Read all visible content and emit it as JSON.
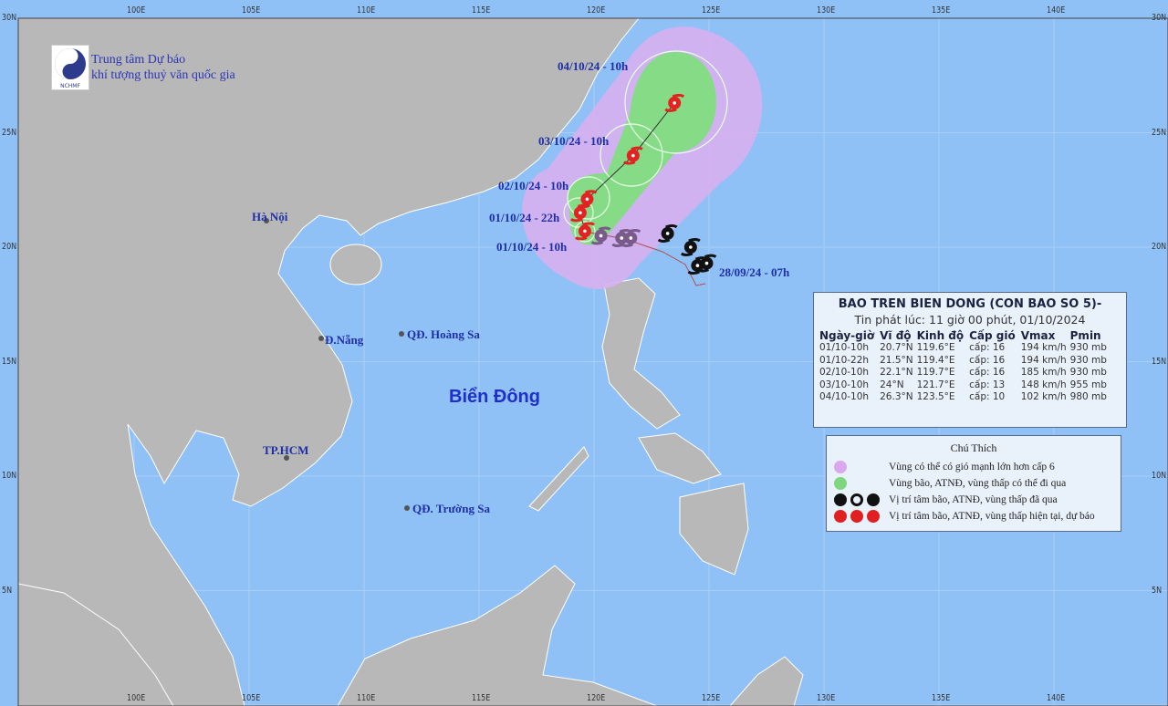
{
  "logo": {
    "abbr": "NCHMF",
    "line1": "Trung tâm Dự báo",
    "line2": "khí tượng thuỷ văn quốc gia"
  },
  "axes": {
    "lon_ticks": [
      "100E",
      "105E",
      "110E",
      "115E",
      "120E",
      "125E",
      "130E",
      "135E",
      "140E"
    ],
    "lat_ticks": [
      "30N",
      "25N",
      "20N",
      "15N",
      "10N",
      "5N"
    ]
  },
  "places": {
    "hanoi": "Hà Nội",
    "danang": "Đ.Nẵng",
    "hcm": "TP.HCM",
    "hoangsa": "QĐ. Hoàng Sa",
    "truongsa": "QĐ. Trường Sa",
    "sea": "Biển Đông"
  },
  "track_labels": {
    "p1": "01/10/24 - 10h",
    "p2": "01/10/24 - 22h",
    "p3": "02/10/24 - 10h",
    "p4": "03/10/24 - 10h",
    "p5": "04/10/24 - 10h",
    "start": "28/09/24 - 07h"
  },
  "forecast_points": [
    {
      "lat": 20.7,
      "lon": 119.6
    },
    {
      "lat": 21.5,
      "lon": 119.4
    },
    {
      "lat": 22.1,
      "lon": 119.7
    },
    {
      "lat": 24.0,
      "lon": 121.7
    },
    {
      "lat": 26.3,
      "lon": 123.5
    }
  ],
  "past_points": [
    {
      "lat": 19.3,
      "lon": 124.9,
      "color": "#111"
    },
    {
      "lat": 19.2,
      "lon": 124.5,
      "color": "#111"
    },
    {
      "lat": 20.0,
      "lon": 124.2,
      "color": "#111"
    },
    {
      "lat": 20.6,
      "lon": 123.2,
      "color": "#111"
    },
    {
      "lat": 20.4,
      "lon": 121.6,
      "color": "#7a5a8a"
    },
    {
      "lat": 20.4,
      "lon": 121.2,
      "color": "#7a5a8a"
    },
    {
      "lat": 20.5,
      "lon": 120.3,
      "color": "#7a5a8a"
    }
  ],
  "info": {
    "title": "BAO TREN BIEN DONG (CON BAO SO 5)-",
    "issued": "Tin phát lúc: 11 giờ 00 phút, 01/10/2024",
    "headers": [
      "Ngày-giờ",
      "Vĩ độ",
      "Kinh độ",
      "Cấp gió",
      "Vmax",
      "Pmin"
    ],
    "rows": [
      [
        "01/10-10h",
        "20.7°N",
        "119.6°E",
        "cấp: 16",
        "194 km/h",
        "930 mb"
      ],
      [
        "01/10-22h",
        "21.5°N",
        "119.4°E",
        "cấp: 16",
        "194 km/h",
        "930 mb"
      ],
      [
        "02/10-10h",
        "22.1°N",
        "119.7°E",
        "cấp: 16",
        "185 km/h",
        "930 mb"
      ],
      [
        "03/10-10h",
        "24°N",
        "121.7°E",
        "cấp: 13",
        "148 km/h",
        "955 mb"
      ],
      [
        "04/10-10h",
        "26.3°N",
        "123.5°E",
        "cấp: 10",
        "102 km/h",
        "980 mb"
      ]
    ]
  },
  "legend": {
    "title": "Chú Thích",
    "items": [
      {
        "text": "Vùng có thể có gió mạnh lớn hơn cấp 6",
        "color": "#d9a8ee"
      },
      {
        "text": "Vùng bão, ATNĐ, vùng thấp có thể đi qua",
        "color": "#7ed77e"
      },
      {
        "text": "Vị trí tâm bão, ATNĐ, vùng thấp đã qua",
        "color": "#111111"
      },
      {
        "text": "Vị trí tâm bão, ATNĐ, vùng thấp hiện tại, dự báo",
        "color": "#e02020"
      }
    ]
  },
  "colors": {
    "sea": "#8fc1f7",
    "land": "#b8b8b8",
    "wind_zone": "#d7b0f0",
    "storm_zone": "#86dc86",
    "track_red": "#e32222"
  }
}
